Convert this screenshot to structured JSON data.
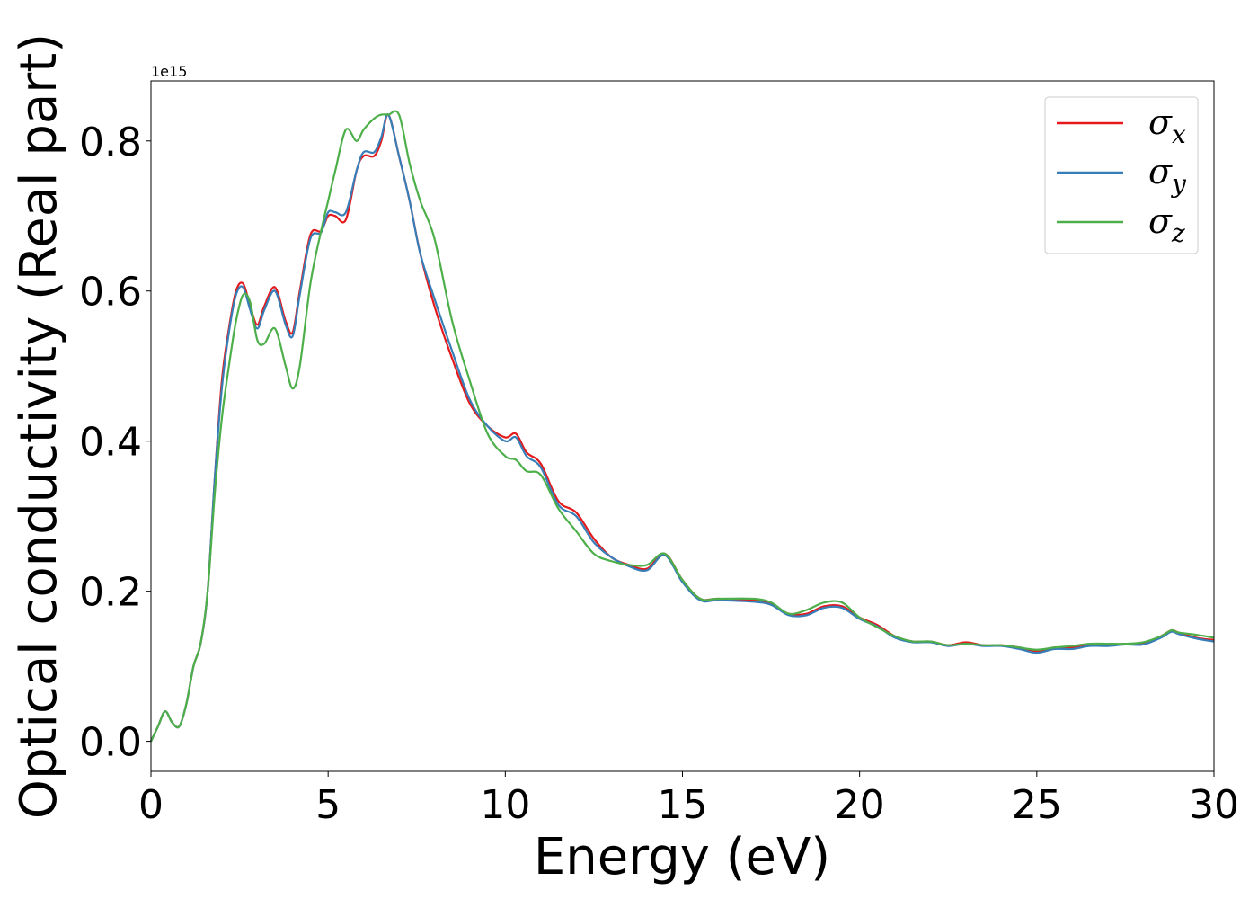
{
  "chart_data": {
    "type": "line",
    "title": "",
    "xlabel": "Energy (eV)",
    "ylabel": "Optical conductivity (Real part)",
    "y_offset_text": "1e15",
    "y_multiplier": 1000000000000000.0,
    "xlim": [
      0,
      30
    ],
    "ylim": [
      -0.04,
      0.88
    ],
    "x_ticks": [
      0,
      5,
      10,
      15,
      20,
      25,
      30
    ],
    "x_tick_labels": [
      "0",
      "5",
      "10",
      "15",
      "20",
      "25",
      "30"
    ],
    "y_ticks": [
      0.0,
      0.2,
      0.4,
      0.6,
      0.8
    ],
    "y_tick_labels": [
      "0.0",
      "0.2",
      "0.4",
      "0.6",
      "0.8"
    ],
    "grid": false,
    "legend_position": "top-right",
    "colors": {
      "sigma_x": "#e41a1c",
      "sigma_y": "#377eb8",
      "sigma_z": "#4daf4a"
    },
    "series": [
      {
        "name": "σx",
        "legend": {
          "base": "σ",
          "sub": "x"
        },
        "color": "#e41a1c",
        "x": [
          0,
          0.2,
          0.4,
          0.6,
          0.8,
          1.0,
          1.2,
          1.4,
          1.6,
          1.8,
          2.0,
          2.2,
          2.4,
          2.6,
          2.8,
          3.0,
          3.2,
          3.5,
          3.8,
          4.0,
          4.2,
          4.5,
          4.8,
          5.0,
          5.2,
          5.5,
          5.8,
          6.0,
          6.3,
          6.5,
          6.7,
          7.0,
          7.3,
          7.6,
          8.0,
          8.5,
          9.0,
          9.5,
          10.0,
          10.3,
          10.6,
          11.0,
          11.5,
          12.0,
          12.5,
          13.0,
          13.5,
          14.0,
          14.5,
          15.0,
          15.5,
          16.0,
          17.0,
          17.5,
          18.0,
          18.5,
          19.0,
          19.5,
          20.0,
          20.5,
          21.0,
          21.5,
          22.0,
          22.5,
          23.0,
          23.5,
          24.0,
          24.5,
          25.0,
          25.5,
          26.0,
          26.5,
          27.0,
          27.5,
          28.0,
          28.5,
          28.8,
          29.0,
          29.5,
          30.0
        ],
        "y": [
          0.0,
          0.02,
          0.04,
          0.025,
          0.02,
          0.05,
          0.1,
          0.13,
          0.2,
          0.35,
          0.48,
          0.55,
          0.6,
          0.61,
          0.58,
          0.555,
          0.58,
          0.605,
          0.56,
          0.545,
          0.6,
          0.675,
          0.68,
          0.7,
          0.7,
          0.695,
          0.76,
          0.78,
          0.78,
          0.8,
          0.835,
          0.78,
          0.72,
          0.65,
          0.58,
          0.51,
          0.45,
          0.42,
          0.405,
          0.41,
          0.385,
          0.37,
          0.32,
          0.305,
          0.27,
          0.245,
          0.235,
          0.23,
          0.25,
          0.215,
          0.19,
          0.19,
          0.188,
          0.183,
          0.17,
          0.17,
          0.18,
          0.18,
          0.165,
          0.155,
          0.14,
          0.133,
          0.133,
          0.128,
          0.132,
          0.128,
          0.128,
          0.125,
          0.12,
          0.125,
          0.125,
          0.128,
          0.128,
          0.13,
          0.13,
          0.14,
          0.148,
          0.145,
          0.138,
          0.135
        ]
      },
      {
        "name": "σy",
        "legend": {
          "base": "σ",
          "sub": "y"
        },
        "color": "#377eb8",
        "x": [
          0,
          0.2,
          0.4,
          0.6,
          0.8,
          1.0,
          1.2,
          1.4,
          1.6,
          1.8,
          2.0,
          2.2,
          2.4,
          2.6,
          2.8,
          3.0,
          3.2,
          3.5,
          3.8,
          4.0,
          4.2,
          4.5,
          4.8,
          5.0,
          5.2,
          5.5,
          5.8,
          6.0,
          6.3,
          6.5,
          6.7,
          7.0,
          7.3,
          7.6,
          8.0,
          8.5,
          9.0,
          9.5,
          10.0,
          10.3,
          10.6,
          11.0,
          11.5,
          12.0,
          12.5,
          13.0,
          13.5,
          14.0,
          14.5,
          15.0,
          15.5,
          16.0,
          17.0,
          17.5,
          18.0,
          18.5,
          19.0,
          19.5,
          20.0,
          20.5,
          21.0,
          21.5,
          22.0,
          22.5,
          23.0,
          23.5,
          24.0,
          24.5,
          25.0,
          25.5,
          26.0,
          26.5,
          27.0,
          27.5,
          28.0,
          28.5,
          28.8,
          29.0,
          29.5,
          30.0
        ],
        "y": [
          0.0,
          0.02,
          0.04,
          0.025,
          0.02,
          0.05,
          0.1,
          0.13,
          0.2,
          0.35,
          0.47,
          0.545,
          0.595,
          0.605,
          0.575,
          0.55,
          0.575,
          0.6,
          0.555,
          0.54,
          0.595,
          0.67,
          0.678,
          0.705,
          0.705,
          0.705,
          0.76,
          0.785,
          0.785,
          0.805,
          0.835,
          0.78,
          0.72,
          0.65,
          0.59,
          0.52,
          0.455,
          0.42,
          0.4,
          0.405,
          0.38,
          0.365,
          0.315,
          0.3,
          0.265,
          0.245,
          0.233,
          0.228,
          0.248,
          0.212,
          0.188,
          0.188,
          0.186,
          0.182,
          0.168,
          0.168,
          0.178,
          0.178,
          0.163,
          0.153,
          0.138,
          0.132,
          0.132,
          0.127,
          0.13,
          0.127,
          0.127,
          0.123,
          0.118,
          0.123,
          0.123,
          0.127,
          0.127,
          0.129,
          0.129,
          0.138,
          0.146,
          0.143,
          0.137,
          0.133
        ]
      },
      {
        "name": "σz",
        "legend": {
          "base": "σ",
          "sub": "z"
        },
        "color": "#4daf4a",
        "x": [
          0,
          0.2,
          0.4,
          0.6,
          0.8,
          1.0,
          1.2,
          1.4,
          1.6,
          1.8,
          2.0,
          2.2,
          2.4,
          2.6,
          2.8,
          3.0,
          3.2,
          3.5,
          3.8,
          4.0,
          4.2,
          4.5,
          4.8,
          5.0,
          5.2,
          5.5,
          5.8,
          6.0,
          6.3,
          6.5,
          6.7,
          7.0,
          7.3,
          7.6,
          8.0,
          8.5,
          9.0,
          9.5,
          10.0,
          10.3,
          10.6,
          11.0,
          11.5,
          12.0,
          12.5,
          13.0,
          13.5,
          14.0,
          14.5,
          15.0,
          15.5,
          16.0,
          17.0,
          17.5,
          18.0,
          18.5,
          19.0,
          19.5,
          20.0,
          20.5,
          21.0,
          21.5,
          22.0,
          22.5,
          23.0,
          23.5,
          24.0,
          24.5,
          25.0,
          25.5,
          26.0,
          26.5,
          27.0,
          27.5,
          28.0,
          28.5,
          28.8,
          29.0,
          29.5,
          30.0
        ],
        "y": [
          0.0,
          0.02,
          0.04,
          0.025,
          0.02,
          0.05,
          0.1,
          0.13,
          0.2,
          0.33,
          0.43,
          0.5,
          0.56,
          0.595,
          0.585,
          0.535,
          0.53,
          0.55,
          0.5,
          0.47,
          0.5,
          0.61,
          0.68,
          0.72,
          0.76,
          0.815,
          0.8,
          0.815,
          0.83,
          0.835,
          0.835,
          0.835,
          0.77,
          0.72,
          0.67,
          0.56,
          0.48,
          0.41,
          0.38,
          0.375,
          0.36,
          0.355,
          0.31,
          0.28,
          0.25,
          0.24,
          0.235,
          0.235,
          0.25,
          0.215,
          0.19,
          0.19,
          0.19,
          0.185,
          0.17,
          0.175,
          0.185,
          0.185,
          0.165,
          0.152,
          0.14,
          0.133,
          0.133,
          0.128,
          0.13,
          0.128,
          0.128,
          0.125,
          0.122,
          0.125,
          0.127,
          0.13,
          0.13,
          0.13,
          0.132,
          0.14,
          0.148,
          0.145,
          0.142,
          0.138
        ]
      }
    ]
  }
}
